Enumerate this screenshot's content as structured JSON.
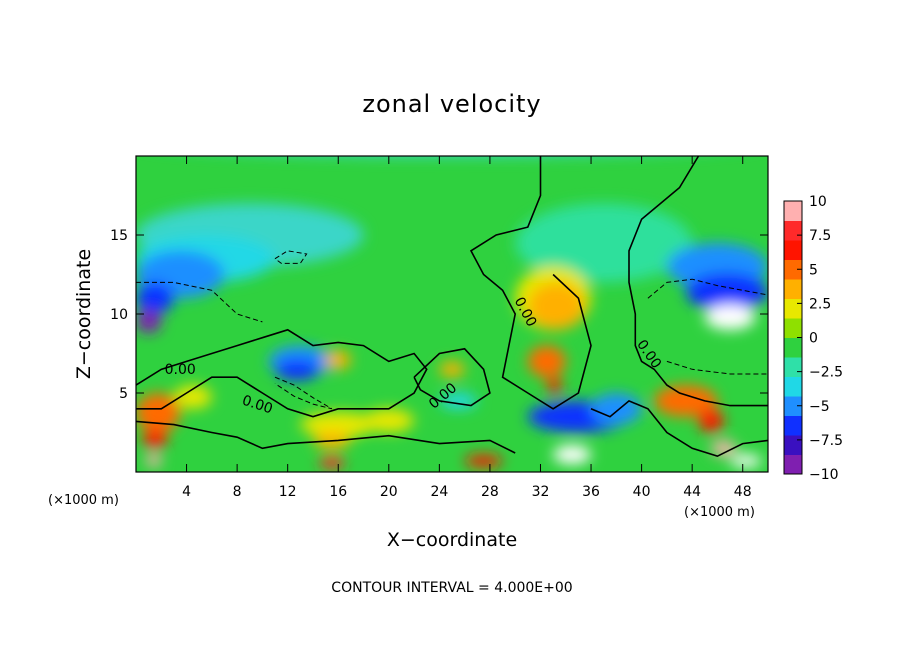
{
  "chart_data": {
    "type": "heatmap",
    "title": "zonal velocity",
    "xlabel": "X−coordinate",
    "ylabel": "Z−coordinate",
    "x_unit": "(×1000 m)",
    "z_unit": "(×1000 m)",
    "footer": "CONTOUR INTERVAL = 4.000E+00",
    "xlim": [
      0,
      50
    ],
    "ylim": [
      0,
      20
    ],
    "x_ticks": [
      4,
      8,
      12,
      16,
      20,
      24,
      28,
      32,
      36,
      40,
      44,
      48
    ],
    "x_tick_labels": [
      "4",
      "8",
      "12",
      "16",
      "20",
      "24",
      "28",
      "32",
      "36",
      "40",
      "44",
      "48"
    ],
    "y_ticks": [
      5,
      10,
      15
    ],
    "y_tick_labels": [
      "5",
      "10",
      "15"
    ],
    "colorbar": {
      "min": -10,
      "max": 10,
      "ticks": [
        10,
        7.5,
        5,
        2.5,
        0,
        -2.5,
        -5,
        -7.5,
        -10
      ],
      "tick_labels": [
        "10",
        "7.5",
        "5",
        "2.5",
        "0",
        "−2.5",
        "−5",
        "−7.5",
        "−10"
      ]
    },
    "contour_interval": 4.0,
    "contour_labels": [
      "0.00",
      "0.00",
      "0.00",
      "0.00",
      "0.00"
    ]
  }
}
